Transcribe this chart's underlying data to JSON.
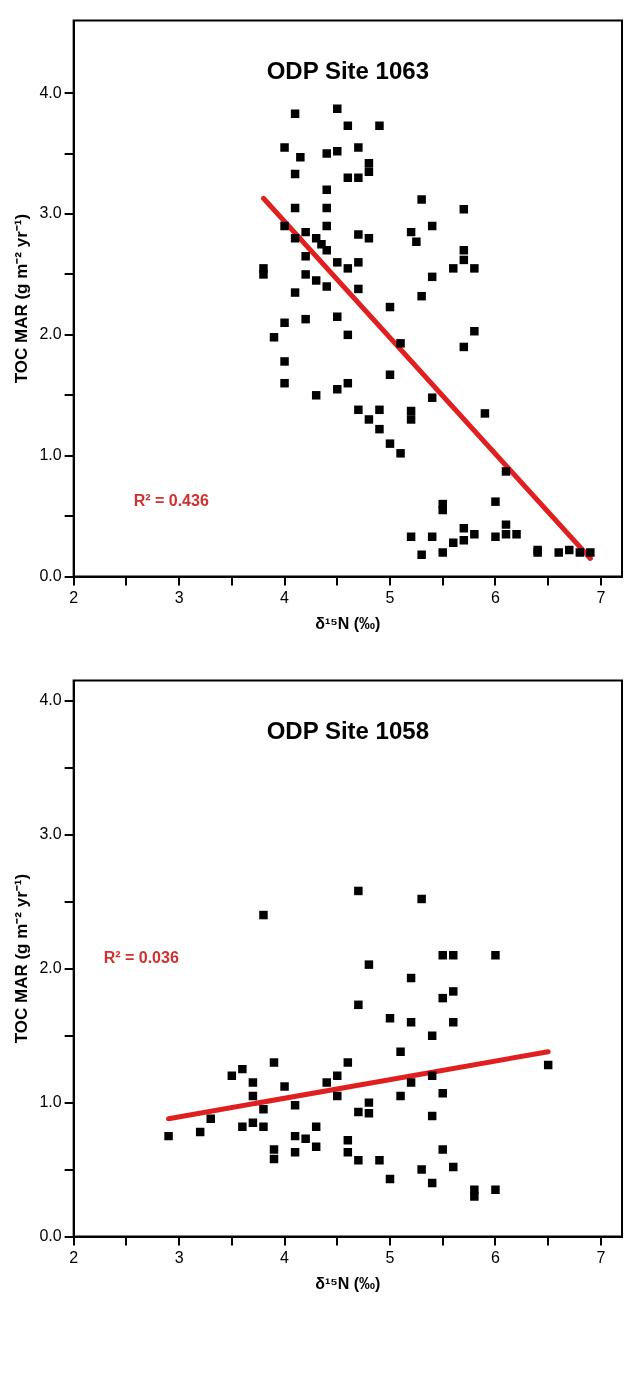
{
  "chart_data": [
    {
      "type": "scatter",
      "title": "ODP Site 1063",
      "xlabel": "δ¹⁵N (‰)",
      "ylabel": "TOC MAR (g m⁻² yr⁻¹)",
      "annotations": [
        "R² = 0.436"
      ],
      "grid": false,
      "xlim": [
        2,
        7.2
      ],
      "ylim": [
        0,
        4.6
      ],
      "xticks": [
        2,
        {
          "value": 2.5,
          "label": null
        },
        3,
        {
          "value": 3.5,
          "label": null
        },
        4,
        {
          "value": 4.5,
          "label": null
        },
        5,
        {
          "value": 5.5,
          "label": null
        },
        6,
        {
          "value": 6.5,
          "label": null
        },
        7
      ],
      "yticks": [
        {
          "value": 0,
          "label": "0.0"
        },
        {
          "value": 0.5,
          "label": null
        },
        {
          "value": 1,
          "label": "1.0"
        },
        {
          "value": 1.5,
          "label": null
        },
        {
          "value": 2,
          "label": "2.0"
        },
        {
          "value": 2.5,
          "label": null
        },
        {
          "value": 3,
          "label": "3.0"
        },
        {
          "value": 3.5,
          "label": null
        },
        {
          "value": 4,
          "label": "4.0"
        }
      ],
      "series": [
        {
          "color": "#000000",
          "marker": "square",
          "x": [
            4.1,
            4.5,
            4.6,
            4.9,
            4.0,
            4.15,
            4.4,
            4.5,
            4.7,
            4.8,
            4.8,
            4.6,
            4.7,
            4.1,
            4.4,
            4.4,
            4.1,
            4.0,
            4.2,
            4.3,
            4.35,
            4.4,
            4.4,
            4.1,
            4.2,
            4.5,
            4.6,
            4.7,
            4.8,
            4.7,
            5.3,
            5.7,
            5.2,
            5.25,
            5.4,
            5.7,
            5.7,
            5.6,
            5.8,
            5.4,
            5.3,
            3.8,
            3.8,
            4.2,
            4.3,
            4.4,
            4.1,
            4.6,
            4.5,
            4.2,
            4.0,
            3.9,
            4.0,
            4.0,
            4.3,
            4.5,
            4.6,
            4.7,
            5.0,
            5.8,
            5.7,
            5.1,
            5.0,
            5.4,
            4.7,
            4.8,
            4.9,
            4.9,
            5.0,
            5.1,
            5.2,
            5.2,
            5.9,
            6.1,
            6.0,
            5.5,
            5.5,
            5.2,
            5.3,
            5.4,
            5.5,
            5.6,
            5.7,
            5.7,
            5.8,
            6.0,
            6.1,
            6.1,
            6.2,
            6.4,
            6.4,
            6.6,
            6.7,
            6.8,
            6.9
          ],
          "values": [
            3.83,
            3.87,
            3.73,
            3.73,
            3.55,
            3.47,
            3.5,
            3.52,
            3.55,
            3.42,
            3.35,
            3.3,
            3.3,
            3.33,
            3.2,
            3.05,
            3.05,
            2.9,
            2.85,
            2.8,
            2.75,
            2.9,
            2.7,
            2.8,
            2.65,
            2.6,
            2.55,
            2.83,
            2.8,
            2.6,
            3.12,
            3.04,
            2.85,
            2.77,
            2.9,
            2.7,
            2.62,
            2.55,
            2.55,
            2.48,
            2.32,
            2.55,
            2.5,
            2.5,
            2.45,
            2.4,
            2.35,
            2.0,
            2.15,
            2.13,
            2.1,
            1.98,
            1.78,
            1.6,
            1.5,
            1.55,
            1.6,
            2.38,
            2.23,
            2.03,
            1.9,
            1.93,
            1.67,
            1.48,
            1.38,
            1.3,
            1.38,
            1.22,
            1.1,
            1.02,
            1.3,
            1.37,
            1.35,
            0.87,
            0.62,
            0.6,
            0.55,
            0.33,
            0.18,
            0.33,
            0.2,
            0.28,
            0.3,
            0.4,
            0.35,
            0.33,
            0.35,
            0.43,
            0.35,
            0.22,
            0.2,
            0.2,
            0.22,
            0.2,
            0.2
          ]
        },
        {
          "type": "line",
          "marker": "none",
          "color": "#e02020",
          "x": [
            3.8,
            6.9
          ],
          "values": [
            3.13,
            0.15
          ]
        }
      ]
    },
    {
      "type": "scatter",
      "title": "ODP Site 1058",
      "xlabel": "δ¹⁵N (‰)",
      "ylabel": "TOC MAR (g m⁻² yr⁻¹)",
      "annotations": [
        "R² = 0.036"
      ],
      "grid": false,
      "xlim": [
        2,
        7.2
      ],
      "ylim": [
        0,
        4.15
      ],
      "xticks": [
        2,
        {
          "value": 2.5,
          "label": null
        },
        3,
        {
          "value": 3.5,
          "label": null
        },
        4,
        {
          "value": 4.5,
          "label": null
        },
        5,
        {
          "value": 5.5,
          "label": null
        },
        6,
        {
          "value": 6.5,
          "label": null
        },
        7
      ],
      "yticks": [
        {
          "value": 0,
          "label": "0.0"
        },
        {
          "value": 0.5,
          "label": null
        },
        {
          "value": 1,
          "label": "1.0"
        },
        {
          "value": 1.5,
          "label": null
        },
        {
          "value": 2,
          "label": "2.0"
        },
        {
          "value": 2.5,
          "label": null
        },
        {
          "value": 3,
          "label": "3.0"
        },
        {
          "value": 3.5,
          "label": null
        },
        {
          "value": 4,
          "label": "4.0"
        }
      ],
      "series": [
        {
          "color": "#000000",
          "marker": "square",
          "x": [
            2.9,
            3.2,
            3.3,
            3.5,
            3.6,
            3.7,
            3.7,
            3.6,
            3.7,
            3.8,
            3.8,
            3.8,
            3.9,
            3.9,
            3.9,
            4.0,
            4.1,
            4.1,
            4.1,
            4.2,
            4.3,
            4.3,
            4.4,
            4.5,
            4.5,
            4.6,
            4.6,
            4.6,
            4.7,
            4.7,
            4.7,
            4.7,
            4.8,
            4.8,
            4.8,
            4.9,
            5.0,
            5.0,
            5.1,
            5.1,
            5.2,
            5.2,
            5.2,
            5.3,
            5.3,
            5.4,
            5.4,
            5.4,
            5.4,
            5.5,
            5.5,
            5.5,
            5.5,
            5.6,
            5.6,
            5.6,
            5.6,
            5.8,
            5.8,
            6.0,
            6.0,
            6.5
          ],
          "values": [
            0.75,
            0.78,
            0.88,
            1.2,
            1.25,
            1.15,
            1.05,
            0.82,
            0.85,
            0.82,
            0.95,
            2.4,
            1.3,
            0.65,
            0.58,
            1.12,
            0.98,
            0.75,
            0.63,
            0.73,
            0.82,
            0.67,
            1.15,
            1.2,
            1.05,
            1.3,
            0.72,
            0.63,
            0.93,
            0.57,
            1.73,
            2.58,
            2.03,
            1.0,
            0.92,
            0.57,
            0.43,
            1.63,
            1.38,
            1.05,
            1.15,
            1.93,
            1.6,
            0.5,
            2.52,
            1.5,
            1.2,
            0.9,
            0.4,
            0.65,
            1.07,
            1.78,
            2.1,
            2.1,
            1.83,
            1.6,
            0.52,
            0.35,
            0.3,
            0.35,
            2.1,
            1.28
          ]
        },
        {
          "type": "line",
          "marker": "none",
          "color": "#e02020",
          "x": [
            2.9,
            6.5
          ],
          "values": [
            0.88,
            1.38
          ]
        }
      ]
    }
  ]
}
